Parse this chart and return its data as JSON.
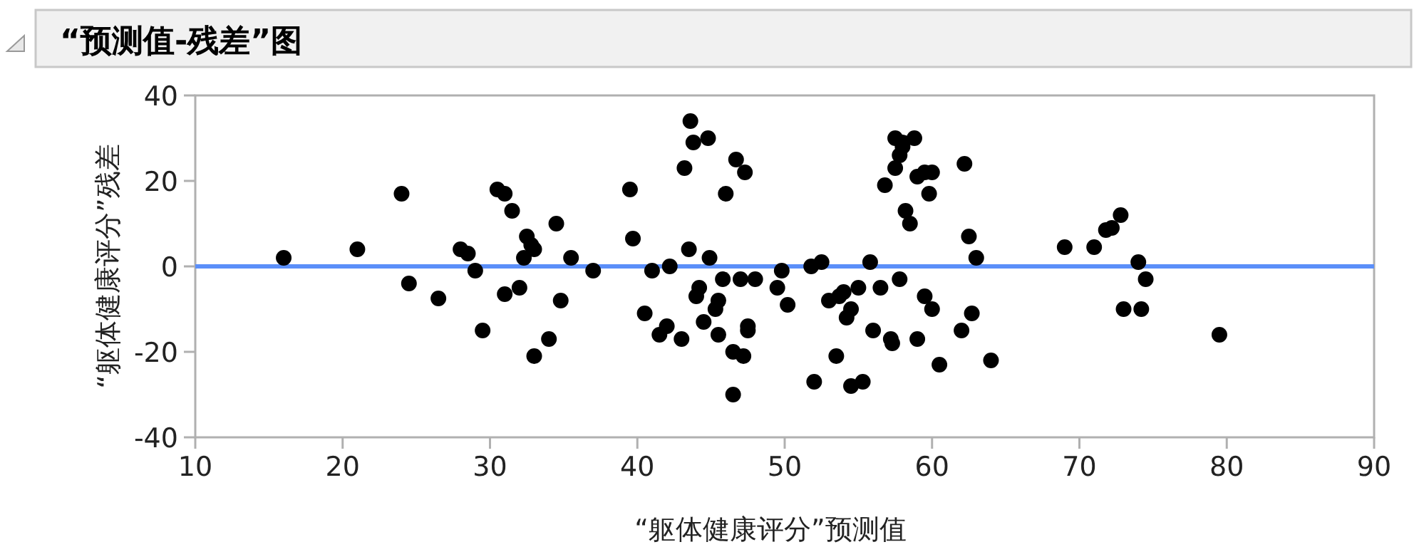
{
  "chart_data": {
    "type": "scatter",
    "title": "“预测值-残差”图",
    "xlabel": "“躯体健康评分”预测值",
    "ylabel": "“躯体健康评分”残差",
    "xlim": [
      10,
      90
    ],
    "ylim": [
      -40,
      40
    ],
    "xticks": [
      10,
      20,
      30,
      40,
      50,
      60,
      70,
      80,
      90
    ],
    "yticks": [
      -40,
      -20,
      0,
      20,
      40
    ],
    "marker": "circle",
    "grid": false,
    "ref_lines": [
      {
        "axis": "y",
        "value": 0,
        "color": "#5b8ff9"
      }
    ],
    "series": [
      {
        "color": "#000000",
        "x": [
          16,
          21,
          24,
          24.5,
          26.5,
          28,
          28.5,
          29,
          29.5,
          30.5,
          31,
          31,
          31.5,
          32,
          32.3,
          32.5,
          32.8,
          33,
          33,
          34,
          34.5,
          34.8,
          35.5,
          37,
          39.5,
          39.7,
          40.5,
          41,
          41.5,
          42,
          42.2,
          43,
          43.2,
          43.5,
          43.6,
          43.8,
          44,
          44.2,
          44.5,
          44.8,
          44.9,
          45.3,
          45.5,
          45.5,
          45.8,
          46,
          46.5,
          46.5,
          46.7,
          47,
          47.2,
          47.3,
          47.5,
          47.5,
          48,
          49.5,
          49.8,
          50.2,
          51.8,
          52,
          52.5,
          53,
          53.5,
          53.7,
          54,
          54.2,
          54.5,
          54.5,
          55,
          55.3,
          55.8,
          56,
          56.5,
          56.8,
          57.2,
          57.3,
          57.5,
          57.5,
          57.8,
          57.8,
          58,
          58,
          58.2,
          58.5,
          58.8,
          59,
          59,
          59.5,
          59.5,
          59.8,
          60,
          60,
          60.5,
          62,
          62.2,
          62.5,
          62.7,
          63,
          64,
          69,
          71,
          71.8,
          72.2,
          72.8,
          73,
          74,
          74.2,
          74.5,
          79.5
        ],
        "values": [
          2,
          4,
          17,
          -4,
          -7.5,
          4,
          3,
          -1,
          -15,
          18,
          17,
          -6.5,
          13,
          -5,
          2,
          7,
          5,
          -21,
          4,
          -17,
          10,
          -8,
          2,
          -1,
          18,
          6.5,
          -11,
          -1,
          -16,
          -14,
          0,
          -17,
          23,
          4,
          34,
          29,
          -7,
          -5,
          -13,
          30,
          2,
          -10,
          -8,
          -16,
          -3,
          17,
          -20,
          -30,
          25,
          -3,
          -21,
          22,
          -14,
          -15,
          -3,
          -5,
          -1,
          -9,
          0,
          -27,
          1,
          -8,
          -21,
          -7,
          -6,
          -12,
          -28,
          -10,
          -5,
          -27,
          1,
          -15,
          -5,
          19,
          -17,
          -18,
          23,
          30,
          -3,
          26,
          28,
          29,
          13,
          10,
          30,
          21,
          -17,
          -7,
          22,
          17,
          -10,
          22,
          -23,
          -15,
          24,
          7,
          -11,
          2,
          -22,
          4.5,
          4.5,
          8.5,
          9,
          12,
          -10,
          1,
          -10,
          -3,
          -16
        ]
      }
    ]
  }
}
